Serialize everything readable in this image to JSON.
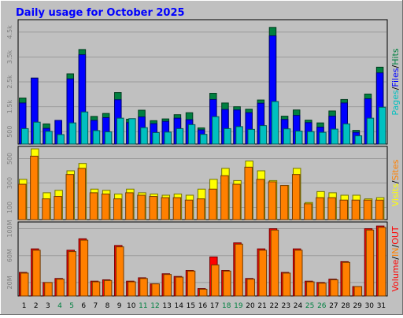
{
  "title": "Daily usage for October 2025",
  "colors": {
    "background": "#c0c0c0",
    "title": "#0000ff",
    "pages": "#00c0c0",
    "files": "#0000ff",
    "hits": "#008040",
    "visits": "#ffff00",
    "sites": "#ff8000",
    "in_kb": "#ff8000",
    "out_kb": "#ff0000"
  },
  "chart_data": [
    {
      "type": "bar",
      "title": "Daily usage for October 2025",
      "xlabel": "",
      "ylabel": "Pages / Files / Hits",
      "ylabel_parts": [
        "Pages",
        "/",
        "Files",
        "/",
        "Hits"
      ],
      "ylim": [
        0,
        5000
      ],
      "yticks": [
        "500",
        "1.5k",
        "2.5k",
        "3.5k",
        "4.5k"
      ],
      "categories": [
        "1",
        "2",
        "3",
        "4",
        "5",
        "6",
        "7",
        "8",
        "9",
        "10",
        "11",
        "12",
        "13",
        "14",
        "15",
        "16",
        "17",
        "18",
        "19",
        "20",
        "21",
        "22",
        "23",
        "24",
        "25",
        "26",
        "27",
        "28",
        "29",
        "30",
        "31"
      ],
      "weekend_days": [
        "4",
        "5",
        "11",
        "12",
        "18",
        "19",
        "25",
        "26"
      ],
      "series": [
        {
          "name": "Hits",
          "values": [
            1850,
            2650,
            810,
            950,
            2820,
            3800,
            1110,
            1230,
            2070,
            1000,
            1360,
            940,
            1010,
            1180,
            1260,
            650,
            2040,
            1650,
            1500,
            1400,
            1770,
            4690,
            1120,
            1370,
            960,
            850,
            1330,
            1790,
            550,
            2010,
            3090
          ]
        },
        {
          "name": "Files",
          "values": [
            1650,
            2650,
            630,
            950,
            2620,
            3590,
            950,
            1060,
            1780,
            860,
            1090,
            820,
            910,
            1040,
            980,
            570,
            1790,
            1390,
            1370,
            1260,
            1640,
            4350,
            990,
            1150,
            860,
            680,
            1120,
            1650,
            470,
            1820,
            2860
          ]
        },
        {
          "name": "Pages",
          "values": [
            620,
            880,
            510,
            380,
            850,
            1290,
            540,
            490,
            1040,
            1020,
            660,
            460,
            480,
            620,
            780,
            390,
            1100,
            620,
            700,
            590,
            740,
            1710,
            610,
            520,
            500,
            470,
            600,
            810,
            330,
            1040,
            1480
          ]
        }
      ]
    },
    {
      "type": "bar",
      "xlabel": "",
      "ylabel": "Visits / Sites",
      "ylabel_parts": [
        "Visits",
        "/",
        "Sites"
      ],
      "ylim": [
        0,
        600
      ],
      "yticks": [
        "100",
        "300",
        "500"
      ],
      "categories": [
        "1",
        "2",
        "3",
        "4",
        "5",
        "6",
        "7",
        "8",
        "9",
        "10",
        "11",
        "12",
        "13",
        "14",
        "15",
        "16",
        "17",
        "18",
        "19",
        "20",
        "21",
        "22",
        "23",
        "24",
        "25",
        "26",
        "27",
        "28",
        "29",
        "30",
        "31"
      ],
      "series": [
        {
          "name": "Visits",
          "values": [
            330,
            580,
            220,
            240,
            400,
            460,
            250,
            240,
            210,
            250,
            220,
            210,
            200,
            210,
            200,
            250,
            330,
            420,
            320,
            480,
            400,
            320,
            280,
            420,
            140,
            230,
            220,
            200,
            200,
            170,
            180
          ]
        },
        {
          "name": "Sites",
          "values": [
            290,
            520,
            170,
            190,
            370,
            420,
            220,
            210,
            170,
            220,
            200,
            190,
            180,
            180,
            160,
            170,
            250,
            360,
            290,
            430,
            330,
            310,
            280,
            370,
            130,
            180,
            180,
            160,
            160,
            160,
            160
          ]
        }
      ]
    },
    {
      "type": "bar",
      "xlabel": "",
      "ylabel": "Volume / IN / OUT",
      "ylabel_parts": [
        "Volume",
        "/",
        "IN",
        "/",
        "OUT"
      ],
      "ylim": [
        0,
        110
      ],
      "yticks": [
        "20M",
        "60M",
        "100M"
      ],
      "categories": [
        "1",
        "2",
        "3",
        "4",
        "5",
        "6",
        "7",
        "8",
        "9",
        "10",
        "11",
        "12",
        "13",
        "14",
        "15",
        "16",
        "17",
        "18",
        "19",
        "20",
        "21",
        "22",
        "23",
        "24",
        "25",
        "26",
        "27",
        "28",
        "29",
        "30",
        "31"
      ],
      "series": [
        {
          "name": "Volume",
          "values": [
            35,
            70,
            20,
            26,
            68,
            85,
            22,
            24,
            75,
            22,
            27,
            18,
            33,
            29,
            38,
            11,
            58,
            38,
            79,
            26,
            70,
            100,
            35,
            70,
            22,
            20,
            25,
            51,
            14,
            100,
            104
          ]
        },
        {
          "name": "IN",
          "values": [
            34,
            68,
            20,
            25,
            66,
            83,
            21,
            23,
            73,
            21,
            26,
            18,
            32,
            28,
            37,
            10,
            46,
            37,
            77,
            25,
            68,
            98,
            34,
            68,
            21,
            19,
            24,
            50,
            14,
            98,
            102
          ]
        },
        {
          "name": "OUT",
          "values": [
            0,
            0,
            0,
            0,
            0,
            0,
            0,
            0,
            0,
            0,
            0,
            0,
            0,
            0,
            0,
            0,
            0,
            0,
            0,
            0,
            0,
            0,
            0,
            0,
            0,
            0,
            0,
            0,
            0,
            0,
            0
          ]
        }
      ]
    }
  ]
}
